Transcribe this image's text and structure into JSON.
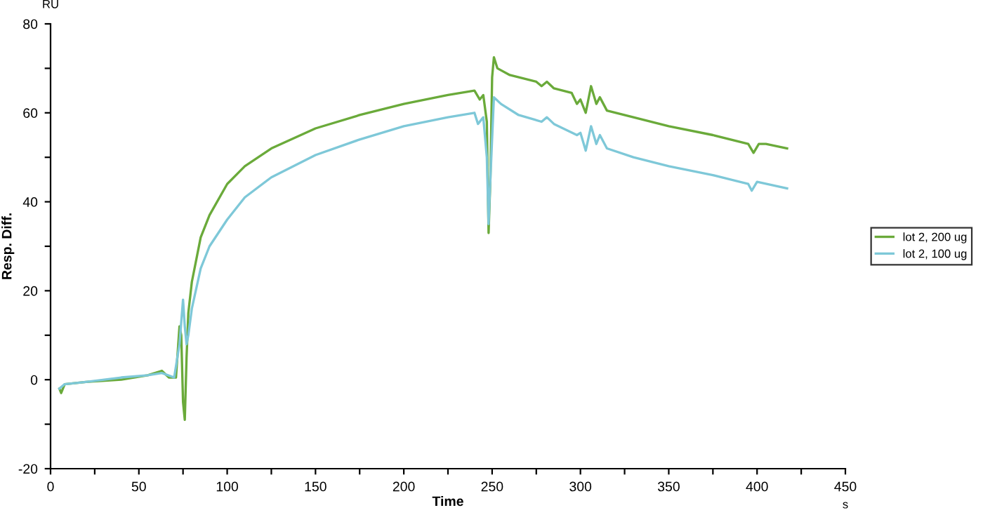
{
  "chart_data": {
    "type": "line",
    "xlabel": "Time",
    "ylabel": "Resp. Diff.",
    "annotations": [
      "RU",
      "s"
    ],
    "xlim": [
      0,
      450
    ],
    "ylim": [
      -20,
      80
    ],
    "xticks": [
      0,
      {
        "value": 25,
        "label": null
      },
      50,
      {
        "value": 75,
        "label": null
      },
      100,
      {
        "value": 125,
        "label": null
      },
      150,
      {
        "value": 175,
        "label": null
      },
      200,
      {
        "value": 225,
        "label": null
      },
      250,
      {
        "value": 275,
        "label": null
      },
      300,
      {
        "value": 325,
        "label": null
      },
      350,
      {
        "value": 375,
        "label": null
      },
      400,
      {
        "value": 425,
        "label": null
      },
      450
    ],
    "yticks": [
      -20,
      {
        "value": -10,
        "label": null
      },
      0,
      {
        "value": 10,
        "label": null
      },
      20,
      {
        "value": 30,
        "label": null
      },
      40,
      {
        "value": 50,
        "label": null
      },
      60,
      {
        "value": 70,
        "label": null
      },
      80
    ],
    "grid": false,
    "legend": "right",
    "marker": "none",
    "line_style": "solid",
    "series": [
      {
        "name": "lot 2, 200 ug",
        "color": "#6aaa3a",
        "x": [
          5,
          6,
          8,
          20,
          40,
          55,
          63,
          67,
          71,
          73,
          74,
          75,
          76,
          77,
          78,
          80,
          85,
          90,
          100,
          110,
          125,
          150,
          175,
          200,
          225,
          240,
          243,
          245,
          247,
          248,
          249,
          250,
          251,
          253,
          260,
          275,
          278,
          281,
          285,
          295,
          298,
          300,
          303,
          306,
          309,
          311,
          315,
          330,
          350,
          375,
          395,
          398,
          401,
          405,
          417
        ],
        "values": [
          -2,
          -3,
          -1,
          -0.5,
          0,
          1,
          2,
          0.5,
          0.5,
          12,
          10,
          -5,
          -9,
          5,
          15,
          22,
          32,
          37,
          44,
          48,
          52,
          56.5,
          59.5,
          62,
          64,
          65,
          63,
          64,
          58,
          33,
          45,
          68,
          72.5,
          70,
          68.5,
          67,
          66,
          67,
          65.5,
          64.5,
          62,
          63,
          60,
          66,
          62,
          63.5,
          60.5,
          59,
          57,
          55,
          53,
          51,
          53,
          53,
          52
        ]
      },
      {
        "name": "lot 2, 100 ug",
        "color": "#7ec8d8",
        "x": [
          5,
          8,
          20,
          40,
          55,
          63,
          70,
          73,
          75,
          76,
          77,
          78,
          80,
          85,
          90,
          100,
          110,
          125,
          150,
          175,
          200,
          225,
          240,
          242,
          245,
          247,
          248,
          249,
          251,
          255,
          265,
          278,
          281,
          285,
          298,
          300,
          303,
          306,
          309,
          311,
          315,
          330,
          350,
          375,
          395,
          397,
          400,
          417
        ],
        "values": [
          -2,
          -1,
          -0.5,
          0.5,
          1,
          1.5,
          0.5,
          8,
          18,
          12,
          8,
          10,
          16,
          25,
          30,
          36,
          41,
          45.5,
          50.5,
          54,
          57,
          59,
          60,
          57.5,
          59,
          50,
          35,
          45,
          63.5,
          62,
          59.5,
          58,
          59,
          57.5,
          55,
          55.5,
          51.5,
          57,
          53,
          55,
          52,
          50,
          48,
          46,
          44,
          42.5,
          44.5,
          43
        ]
      }
    ]
  }
}
